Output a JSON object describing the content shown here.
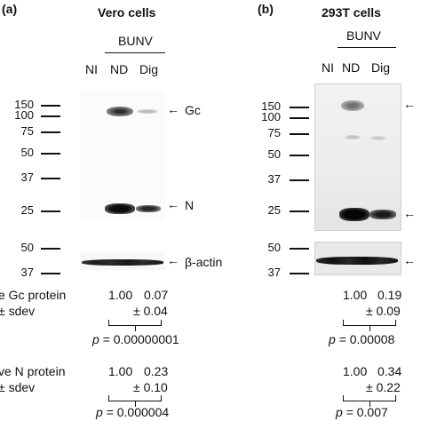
{
  "panel_a": {
    "letter": "(a)",
    "title": "Vero cells",
    "group_label": "BUNV",
    "lanes": [
      "NI",
      "ND",
      "Dig"
    ],
    "markers_top": [
      "150",
      "100",
      "75",
      "50",
      "37",
      "25"
    ],
    "markers_bottom": [
      "50",
      "37"
    ],
    "band_labels": {
      "gc": "Gc",
      "n": "N",
      "actin": "β-actin"
    },
    "gc_row": {
      "label": "e Gc protein",
      "sdev_label": "± sdev",
      "v1": "1.00",
      "v2": "0.07",
      "sd2": "± 0.04",
      "pvalue": "= 0.00000001"
    },
    "n_row": {
      "label": "ve N protein",
      "sdev_label": "± sdev",
      "v1": "1.00",
      "v2": "0.23",
      "sd2": "± 0.10",
      "pvalue": "= 0.000004"
    }
  },
  "panel_b": {
    "letter": "(b)",
    "title": "293T cells",
    "group_label": "BUNV",
    "lanes": [
      "NI",
      "ND",
      "Dig"
    ],
    "markers_top": [
      "150",
      "100",
      "75",
      "50",
      "37",
      "25"
    ],
    "markers_bottom": [
      "50",
      "37"
    ],
    "gc_row": {
      "v1": "1.00",
      "v2": "0.19",
      "sd2": "± 0.09",
      "pvalue": "= 0.00008"
    },
    "n_row": {
      "v1": "1.00",
      "v2": "0.34",
      "sd2": "± 0.22",
      "pvalue": "= 0.007"
    }
  },
  "p_symbol": "p",
  "arrow_glyph": "←"
}
